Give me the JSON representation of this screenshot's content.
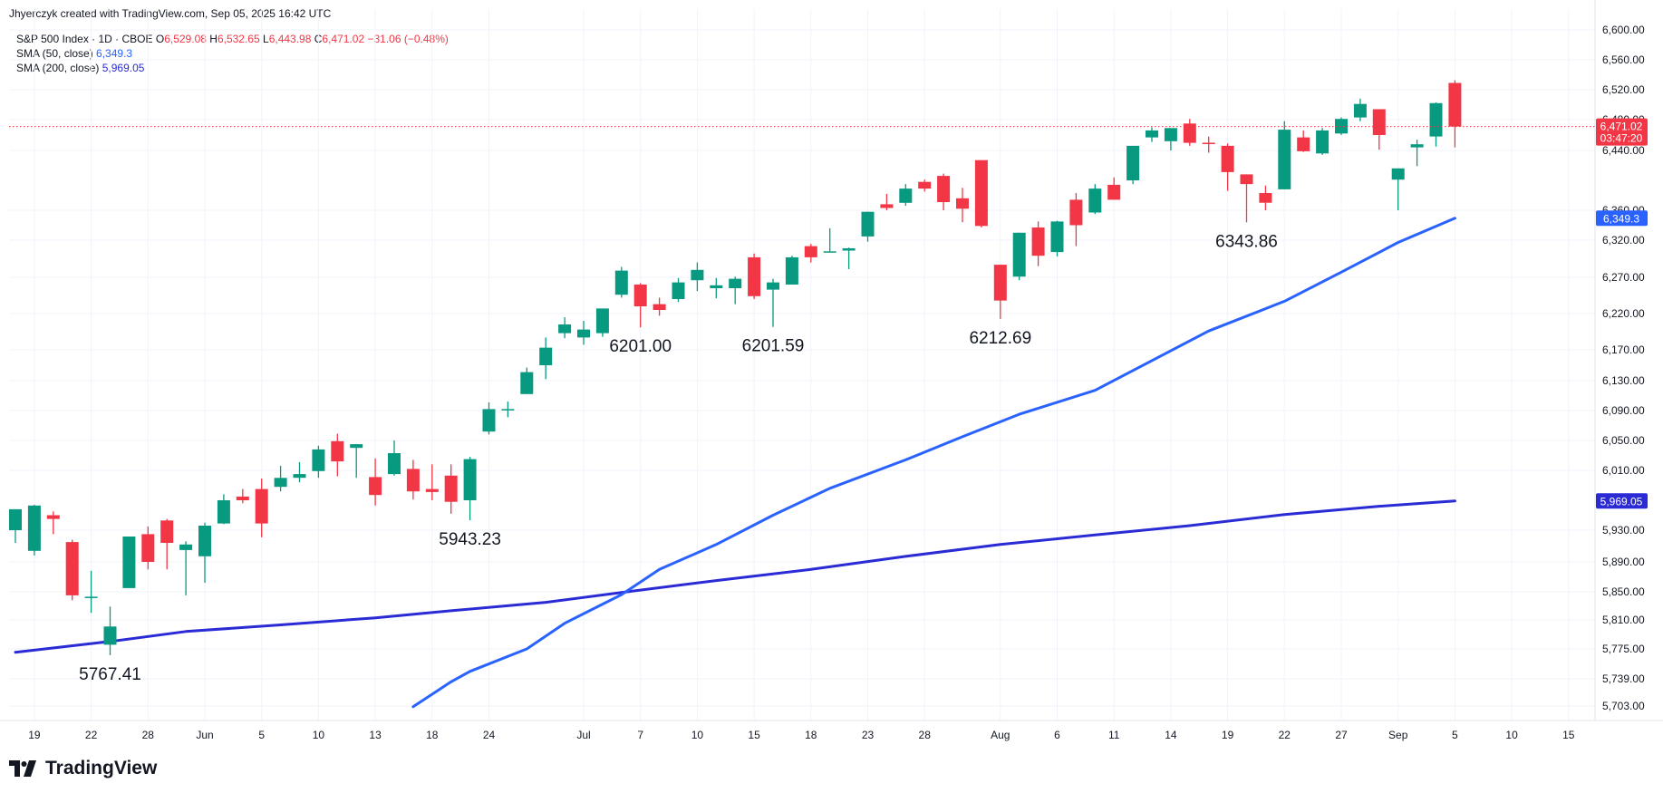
{
  "header": {
    "credit": "Jhyerczyk created with TradingView.com, Sep 05, 2025 16:42 UTC"
  },
  "legend": {
    "symbol": "S&P 500 Index · 1D · CBOE",
    "open_label": "O",
    "open": "6,529.08",
    "high_label": "H",
    "high": "6,532.65",
    "low_label": "L",
    "low": "6,443.98",
    "close_label": "C",
    "close": "6,471.02",
    "change": "−31.06 (−0.48%)",
    "sma50_label": "SMA (50, close)",
    "sma50_value": "6,349.3",
    "sma200_label": "SMA (200, close)",
    "sma200_value": "5,969.05"
  },
  "colors": {
    "up": "#089981",
    "down": "#f23645",
    "sma50": "#2962ff",
    "sma200": "#2b2bd6"
  },
  "brand": {
    "name": "TradingView"
  },
  "chart_data": {
    "type": "candlestick",
    "y_ticks": [
      "5,703.00",
      "5,739.00",
      "5,775.00",
      "5,810.00",
      "5,850.00",
      "5,890.00",
      "5,930.00",
      "6,010.00",
      "6,050.00",
      "6,090.00",
      "6,130.00",
      "6,170.00",
      "6,220.00",
      "6,270.00",
      "6,320.00",
      "6,360.00",
      "6,440.00",
      "6,480.00",
      "6,520.00",
      "6,560.00",
      "6,600.00"
    ],
    "x_ticks": [
      {
        "label": "19",
        "date": "2025-05-19"
      },
      {
        "label": "22",
        "date": "2025-05-22"
      },
      {
        "label": "28",
        "date": "2025-05-28"
      },
      {
        "label": "Jun",
        "date": "2025-06-02"
      },
      {
        "label": "5",
        "date": "2025-06-05"
      },
      {
        "label": "10",
        "date": "2025-06-10"
      },
      {
        "label": "13",
        "date": "2025-06-13"
      },
      {
        "label": "18",
        "date": "2025-06-18"
      },
      {
        "label": "24",
        "date": "2025-06-24"
      },
      {
        "label": "Jul",
        "date": "2025-07-01"
      },
      {
        "label": "7",
        "date": "2025-07-07"
      },
      {
        "label": "10",
        "date": "2025-07-10"
      },
      {
        "label": "15",
        "date": "2025-07-15"
      },
      {
        "label": "18",
        "date": "2025-07-18"
      },
      {
        "label": "23",
        "date": "2025-07-23"
      },
      {
        "label": "28",
        "date": "2025-07-28"
      },
      {
        "label": "Aug",
        "date": "2025-08-01"
      },
      {
        "label": "6",
        "date": "2025-08-06"
      },
      {
        "label": "11",
        "date": "2025-08-11"
      },
      {
        "label": "14",
        "date": "2025-08-14"
      },
      {
        "label": "19",
        "date": "2025-08-19"
      },
      {
        "label": "22",
        "date": "2025-08-22"
      },
      {
        "label": "27",
        "date": "2025-08-27"
      },
      {
        "label": "Sep",
        "date": "2025-09-02"
      },
      {
        "label": "5",
        "date": "2025-09-05"
      },
      {
        "label": "10",
        "date": "2025-09-10"
      },
      {
        "label": "15",
        "date": "2025-09-15"
      }
    ],
    "candles": [
      {
        "d": "2025-05-16",
        "o": 5930,
        "h": 5958,
        "l": 5914,
        "c": 5958
      },
      {
        "d": "2025-05-19",
        "o": 5904,
        "h": 5964,
        "l": 5898,
        "c": 5963
      },
      {
        "d": "2025-05-20",
        "o": 5950,
        "h": 5955,
        "l": 5925,
        "c": 5945
      },
      {
        "d": "2025-05-21",
        "o": 5915,
        "h": 5918,
        "l": 5838,
        "c": 5845
      },
      {
        "d": "2025-05-22",
        "o": 5843,
        "h": 5878,
        "l": 5820,
        "c": 5843
      },
      {
        "d": "2025-05-23",
        "o": 5780,
        "h": 5829,
        "l": 5767.41,
        "c": 5802
      },
      {
        "d": "2025-05-27",
        "o": 5855,
        "h": 5922,
        "l": 5855,
        "c": 5922
      },
      {
        "d": "2025-05-28",
        "o": 5925,
        "h": 5935,
        "l": 5880,
        "c": 5890
      },
      {
        "d": "2025-05-29",
        "o": 5943,
        "h": 5945,
        "l": 5880,
        "c": 5914
      },
      {
        "d": "2025-05-30",
        "o": 5905,
        "h": 5916,
        "l": 5845,
        "c": 5912
      },
      {
        "d": "2025-06-02",
        "o": 5897,
        "h": 5940,
        "l": 5862,
        "c": 5936
      },
      {
        "d": "2025-06-03",
        "o": 5939,
        "h": 5978,
        "l": 5938,
        "c": 5970
      },
      {
        "d": "2025-06-04",
        "o": 5975,
        "h": 5985,
        "l": 5966,
        "c": 5970
      },
      {
        "d": "2025-06-05",
        "o": 5985,
        "h": 5999,
        "l": 5921,
        "c": 5939
      },
      {
        "d": "2025-06-06",
        "o": 5988,
        "h": 6016,
        "l": 5982,
        "c": 6000
      },
      {
        "d": "2025-06-09",
        "o": 6000,
        "h": 6021,
        "l": 5994,
        "c": 6005
      },
      {
        "d": "2025-06-10",
        "o": 6009,
        "h": 6043,
        "l": 6000,
        "c": 6038
      },
      {
        "d": "2025-06-11",
        "o": 6049,
        "h": 6059,
        "l": 6002,
        "c": 6022
      },
      {
        "d": "2025-06-12",
        "o": 6040,
        "h": 6045,
        "l": 6000,
        "c": 6045
      },
      {
        "d": "2025-06-13",
        "o": 6001,
        "h": 6026,
        "l": 5963,
        "c": 5977
      },
      {
        "d": "2025-06-16",
        "o": 6005,
        "h": 6050,
        "l": 6003,
        "c": 6033
      },
      {
        "d": "2025-06-17",
        "o": 6012,
        "h": 6024,
        "l": 5971,
        "c": 5982
      },
      {
        "d": "2025-06-18",
        "o": 5985,
        "h": 6018,
        "l": 5970,
        "c": 5981
      },
      {
        "d": "2025-06-20",
        "o": 6003,
        "h": 6018,
        "l": 5952,
        "c": 5968
      },
      {
        "d": "2025-06-23",
        "o": 5970,
        "h": 6028,
        "l": 5943.23,
        "c": 6025
      },
      {
        "d": "2025-06-24",
        "o": 6062,
        "h": 6101,
        "l": 6058,
        "c": 6092
      },
      {
        "d": "2025-06-25",
        "o": 6092,
        "h": 6102,
        "l": 6081,
        "c": 6092
      },
      {
        "d": "2025-06-26",
        "o": 6112,
        "h": 6147,
        "l": 6112,
        "c": 6141
      },
      {
        "d": "2025-06-27",
        "o": 6150,
        "h": 6187,
        "l": 6132,
        "c": 6173
      },
      {
        "d": "2025-06-30",
        "o": 6193,
        "h": 6215,
        "l": 6186,
        "c": 6205
      },
      {
        "d": "2025-07-01",
        "o": 6187,
        "h": 6210,
        "l": 6177,
        "c": 6198
      },
      {
        "d": "2025-07-02",
        "o": 6193,
        "h": 6227,
        "l": 6188,
        "c": 6227
      },
      {
        "d": "2025-07-03",
        "o": 6246,
        "h": 6284,
        "l": 6242,
        "c": 6279
      },
      {
        "d": "2025-07-07",
        "o": 6260,
        "h": 6262,
        "l": 6201.0,
        "c": 6230
      },
      {
        "d": "2025-07-08",
        "o": 6233,
        "h": 6242,
        "l": 6217,
        "c": 6225
      },
      {
        "d": "2025-07-09",
        "o": 6240,
        "h": 6269,
        "l": 6236,
        "c": 6263
      },
      {
        "d": "2025-07-10",
        "o": 6266,
        "h": 6290,
        "l": 6251,
        "c": 6280
      },
      {
        "d": "2025-07-11",
        "o": 6255,
        "h": 6269,
        "l": 6241,
        "c": 6259
      },
      {
        "d": "2025-07-14",
        "o": 6255,
        "h": 6271,
        "l": 6233,
        "c": 6268
      },
      {
        "d": "2025-07-15",
        "o": 6297,
        "h": 6302,
        "l": 6240,
        "c": 6244
      },
      {
        "d": "2025-07-16",
        "o": 6253,
        "h": 6268,
        "l": 6201.59,
        "c": 6263
      },
      {
        "d": "2025-07-17",
        "o": 6260,
        "h": 6299,
        "l": 6260,
        "c": 6297
      },
      {
        "d": "2025-07-18",
        "o": 6312,
        "h": 6315,
        "l": 6290,
        "c": 6297
      },
      {
        "d": "2025-07-21",
        "o": 6305,
        "h": 6336,
        "l": 6305,
        "c": 6305
      },
      {
        "d": "2025-07-22",
        "o": 6306,
        "h": 6310,
        "l": 6281,
        "c": 6309
      },
      {
        "d": "2025-07-23",
        "o": 6325,
        "h": 6358,
        "l": 6318,
        "c": 6358
      },
      {
        "d": "2025-07-24",
        "o": 6368,
        "h": 6382,
        "l": 6360,
        "c": 6363
      },
      {
        "d": "2025-07-25",
        "o": 6370,
        "h": 6395,
        "l": 6366,
        "c": 6389
      },
      {
        "d": "2025-07-28",
        "o": 6398,
        "h": 6401,
        "l": 6385,
        "c": 6389
      },
      {
        "d": "2025-07-29",
        "o": 6406,
        "h": 6409,
        "l": 6360,
        "c": 6371
      },
      {
        "d": "2025-07-30",
        "o": 6376,
        "h": 6390,
        "l": 6344,
        "c": 6362
      },
      {
        "d": "2025-07-31",
        "o": 6427,
        "h": 6427,
        "l": 6337,
        "c": 6339
      },
      {
        "d": "2025-08-01",
        "o": 6287,
        "h": 6287,
        "l": 6212.69,
        "c": 6238
      },
      {
        "d": "2025-08-04",
        "o": 6271,
        "h": 6330,
        "l": 6266,
        "c": 6330
      },
      {
        "d": "2025-08-05",
        "o": 6337,
        "h": 6345,
        "l": 6285,
        "c": 6299
      },
      {
        "d": "2025-08-06",
        "o": 6304,
        "h": 6346,
        "l": 6298,
        "c": 6345
      },
      {
        "d": "2025-08-07",
        "o": 6374,
        "h": 6383,
        "l": 6312,
        "c": 6340
      },
      {
        "d": "2025-08-08",
        "o": 6357,
        "h": 6395,
        "l": 6355,
        "c": 6389
      },
      {
        "d": "2025-08-11",
        "o": 6394,
        "h": 6404,
        "l": 6374,
        "c": 6374
      },
      {
        "d": "2025-08-12",
        "o": 6400,
        "h": 6446,
        "l": 6395,
        "c": 6446
      },
      {
        "d": "2025-08-13",
        "o": 6457,
        "h": 6470,
        "l": 6451,
        "c": 6466
      },
      {
        "d": "2025-08-14",
        "o": 6452,
        "h": 6467,
        "l": 6440,
        "c": 6469
      },
      {
        "d": "2025-08-15",
        "o": 6475,
        "h": 6481,
        "l": 6446,
        "c": 6450
      },
      {
        "d": "2025-08-18",
        "o": 6450,
        "h": 6458,
        "l": 6437,
        "c": 6449
      },
      {
        "d": "2025-08-19",
        "o": 6446,
        "h": 6449,
        "l": 6386,
        "c": 6411
      },
      {
        "d": "2025-08-20",
        "o": 6408,
        "h": 6408,
        "l": 6343.86,
        "c": 6395
      },
      {
        "d": "2025-08-21",
        "o": 6383,
        "h": 6393,
        "l": 6360,
        "c": 6370
      },
      {
        "d": "2025-08-22",
        "o": 6388,
        "h": 6478,
        "l": 6388,
        "c": 6467
      },
      {
        "d": "2025-08-25",
        "o": 6457,
        "h": 6466,
        "l": 6438,
        "c": 6439
      },
      {
        "d": "2025-08-26",
        "o": 6436,
        "h": 6469,
        "l": 6434,
        "c": 6466
      },
      {
        "d": "2025-08-27",
        "o": 6462,
        "h": 6483,
        "l": 6460,
        "c": 6481
      },
      {
        "d": "2025-08-28",
        "o": 6483,
        "h": 6508,
        "l": 6478,
        "c": 6501
      },
      {
        "d": "2025-08-29",
        "o": 6494,
        "h": 6494,
        "l": 6441,
        "c": 6460
      },
      {
        "d": "2025-09-02",
        "o": 6401,
        "h": 6416,
        "l": 6360,
        "c": 6416
      },
      {
        "d": "2025-09-03",
        "o": 6444,
        "h": 6454,
        "l": 6419,
        "c": 6448
      },
      {
        "d": "2025-09-04",
        "o": 6458,
        "h": 6503,
        "l": 6445,
        "c": 6502
      },
      {
        "d": "2025-09-05",
        "o": 6529.08,
        "h": 6532.65,
        "l": 6443.98,
        "c": 6471.02
      }
    ],
    "sma50": {
      "name": "SMA (50, close)",
      "points": [
        {
          "d": "2025-06-17",
          "v": 5702
        },
        {
          "d": "2025-06-20",
          "v": 5735
        },
        {
          "d": "2025-06-23",
          "v": 5748
        },
        {
          "d": "2025-06-26",
          "v": 5775
        },
        {
          "d": "2025-06-30",
          "v": 5806
        },
        {
          "d": "2025-07-03",
          "v": 5846
        },
        {
          "d": "2025-07-08",
          "v": 5880
        },
        {
          "d": "2025-07-11",
          "v": 5912
        },
        {
          "d": "2025-07-16",
          "v": 5950
        },
        {
          "d": "2025-07-21",
          "v": 5986
        },
        {
          "d": "2025-07-25",
          "v": 6024
        },
        {
          "d": "2025-07-30",
          "v": 6055
        },
        {
          "d": "2025-08-04",
          "v": 6085
        },
        {
          "d": "2025-08-08",
          "v": 6117
        },
        {
          "d": "2025-08-13",
          "v": 6156
        },
        {
          "d": "2025-08-18",
          "v": 6196
        },
        {
          "d": "2025-08-22",
          "v": 6237
        },
        {
          "d": "2025-08-27",
          "v": 6277
        },
        {
          "d": "2025-09-02",
          "v": 6317
        },
        {
          "d": "2025-09-05",
          "v": 6349.3
        }
      ]
    },
    "sma200": {
      "name": "SMA (200, close)",
      "points": [
        {
          "d": "2025-05-16",
          "v": 5771
        },
        {
          "d": "2025-05-23",
          "v": 5784
        },
        {
          "d": "2025-05-30",
          "v": 5796
        },
        {
          "d": "2025-06-06",
          "v": 5804
        },
        {
          "d": "2025-06-13",
          "v": 5813
        },
        {
          "d": "2025-06-20",
          "v": 5823
        },
        {
          "d": "2025-06-27",
          "v": 5835
        },
        {
          "d": "2025-07-03",
          "v": 5849
        },
        {
          "d": "2025-07-11",
          "v": 5865
        },
        {
          "d": "2025-07-18",
          "v": 5880
        },
        {
          "d": "2025-07-25",
          "v": 5897
        },
        {
          "d": "2025-08-01",
          "v": 5912
        },
        {
          "d": "2025-08-08",
          "v": 5924
        },
        {
          "d": "2025-08-15",
          "v": 5936
        },
        {
          "d": "2025-08-22",
          "v": 5951
        },
        {
          "d": "2025-08-29",
          "v": 5962
        },
        {
          "d": "2025-09-05",
          "v": 5969.05
        }
      ]
    },
    "annotations": [
      {
        "text": "5767.41",
        "d": "2025-05-23",
        "v": 5767.41
      },
      {
        "text": "5943.23",
        "d": "2025-06-23",
        "v": 5943.23
      },
      {
        "text": "6201.00",
        "d": "2025-07-07",
        "v": 6201.0
      },
      {
        "text": "6201.59",
        "d": "2025-07-16",
        "v": 6201.59
      },
      {
        "text": "6212.69",
        "d": "2025-08-01",
        "v": 6212.69
      },
      {
        "text": "6343.86",
        "d": "2025-08-20",
        "v": 6343.86
      }
    ],
    "price_labels": {
      "last_price": "6,471.02",
      "countdown": "03:47:20",
      "sma50": "6,349.3",
      "sma200": "5,969.05"
    },
    "last_price_value": 6471.02,
    "sma50_value": 6349.3,
    "sma200_value": 5969.05
  }
}
